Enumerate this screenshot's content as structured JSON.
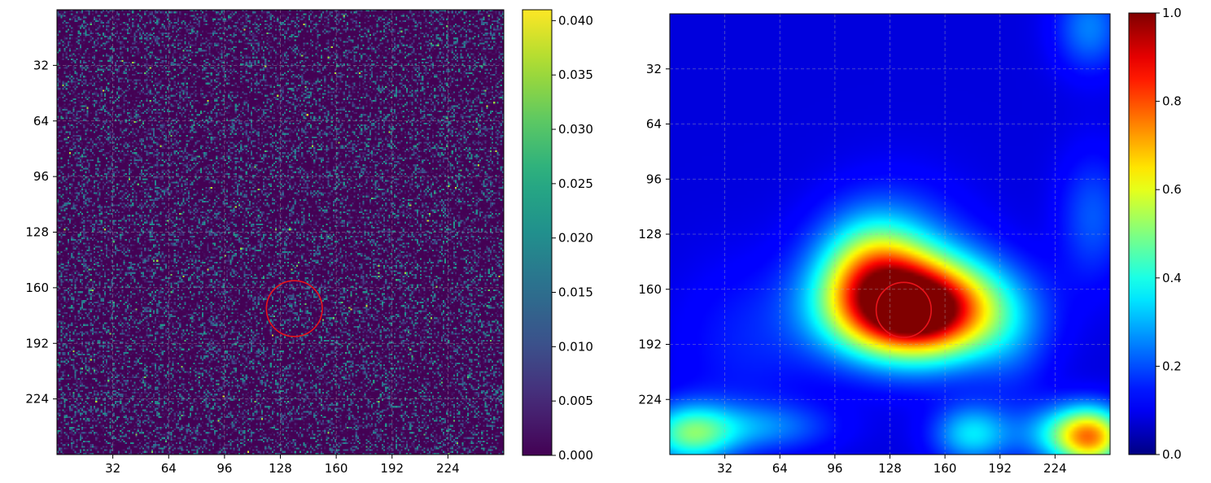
{
  "chart_data": [
    {
      "type": "heatmap",
      "title": "",
      "xlabel": "",
      "ylabel": "",
      "colormap": "viridis",
      "xlim": [
        0,
        256
      ],
      "ylim": [
        256,
        0
      ],
      "x_ticks": [
        32,
        64,
        96,
        128,
        160,
        192,
        224
      ],
      "y_ticks": [
        32,
        64,
        96,
        128,
        160,
        192,
        224
      ],
      "x_tick_labels": [
        "32",
        "64",
        "96",
        "128",
        "160",
        "192",
        "224"
      ],
      "y_tick_labels": [
        "32",
        "64",
        "96",
        "128",
        "160",
        "192",
        "224"
      ],
      "grid": true,
      "grid_style": "dashed",
      "description_values": "pixel-level noise field, values mostly 0.000–0.010 with sparse brighter pixels up to ~0.040",
      "colorbar": {
        "range": [
          0.0,
          0.041
        ],
        "ticks": [
          0.0,
          0.005,
          0.01,
          0.015,
          0.02,
          0.025,
          0.03,
          0.035,
          0.04
        ],
        "tick_labels": [
          "0.000",
          "0.005",
          "0.010",
          "0.015",
          "0.020",
          "0.025",
          "0.030",
          "0.035",
          "0.040"
        ]
      },
      "circle": {
        "cx": 136,
        "cy": 172,
        "r": 16,
        "color": "#e8141b"
      }
    },
    {
      "type": "heatmap",
      "title": "",
      "xlabel": "",
      "ylabel": "",
      "colormap": "jet",
      "xlim": [
        0,
        256
      ],
      "ylim": [
        256,
        0
      ],
      "x_ticks": [
        32,
        64,
        96,
        128,
        160,
        192,
        224
      ],
      "y_ticks": [
        32,
        64,
        96,
        128,
        160,
        192,
        224
      ],
      "x_tick_labels": [
        "32",
        "64",
        "96",
        "128",
        "160",
        "192",
        "224"
      ],
      "y_tick_labels": [
        "32",
        "64",
        "96",
        "128",
        "160",
        "192",
        "224"
      ],
      "grid": true,
      "grid_style": "dashed",
      "peak": {
        "x": 144,
        "y": 172,
        "value": 1.0
      },
      "blobs": [
        {
          "x": 144,
          "y": 172,
          "sx": 34,
          "sy": 20,
          "amp": 1.0
        },
        {
          "x": 144,
          "y": 172,
          "sx": 12,
          "sy": 8,
          "amp": 0.2
        },
        {
          "x": 118,
          "y": 148,
          "sx": 22,
          "sy": 22,
          "amp": 0.38
        },
        {
          "x": 135,
          "y": 142,
          "sx": 30,
          "sy": 30,
          "amp": 0.12
        },
        {
          "x": 12,
          "y": 244,
          "sx": 18,
          "sy": 12,
          "amp": 0.37
        },
        {
          "x": 54,
          "y": 240,
          "sx": 28,
          "sy": 10,
          "amp": 0.16
        },
        {
          "x": 176,
          "y": 244,
          "sx": 16,
          "sy": 12,
          "amp": 0.27
        },
        {
          "x": 246,
          "y": 246,
          "sx": 14,
          "sy": 12,
          "amp": 0.53
        },
        {
          "x": 228,
          "y": 244,
          "sx": 18,
          "sy": 12,
          "amp": 0.25
        },
        {
          "x": 244,
          "y": 8,
          "sx": 14,
          "sy": 18,
          "amp": 0.17
        },
        {
          "x": 246,
          "y": 118,
          "sx": 14,
          "sy": 26,
          "amp": 0.13
        },
        {
          "x": 44,
          "y": 192,
          "sx": 30,
          "sy": 34,
          "amp": 0.07
        },
        {
          "x": 200,
          "y": 196,
          "sx": 16,
          "sy": 22,
          "amp": 0.07
        }
      ],
      "base_value": 0.08,
      "colorbar": {
        "range": [
          0.0,
          1.0
        ],
        "ticks": [
          0.0,
          0.2,
          0.4,
          0.6,
          0.8,
          1.0
        ],
        "tick_labels": [
          "0.0",
          "0.2",
          "0.4",
          "0.6",
          "0.8",
          "1.0"
        ]
      },
      "circle": {
        "cx": 136,
        "cy": 172,
        "r": 16,
        "color": "#e8141b"
      }
    }
  ]
}
